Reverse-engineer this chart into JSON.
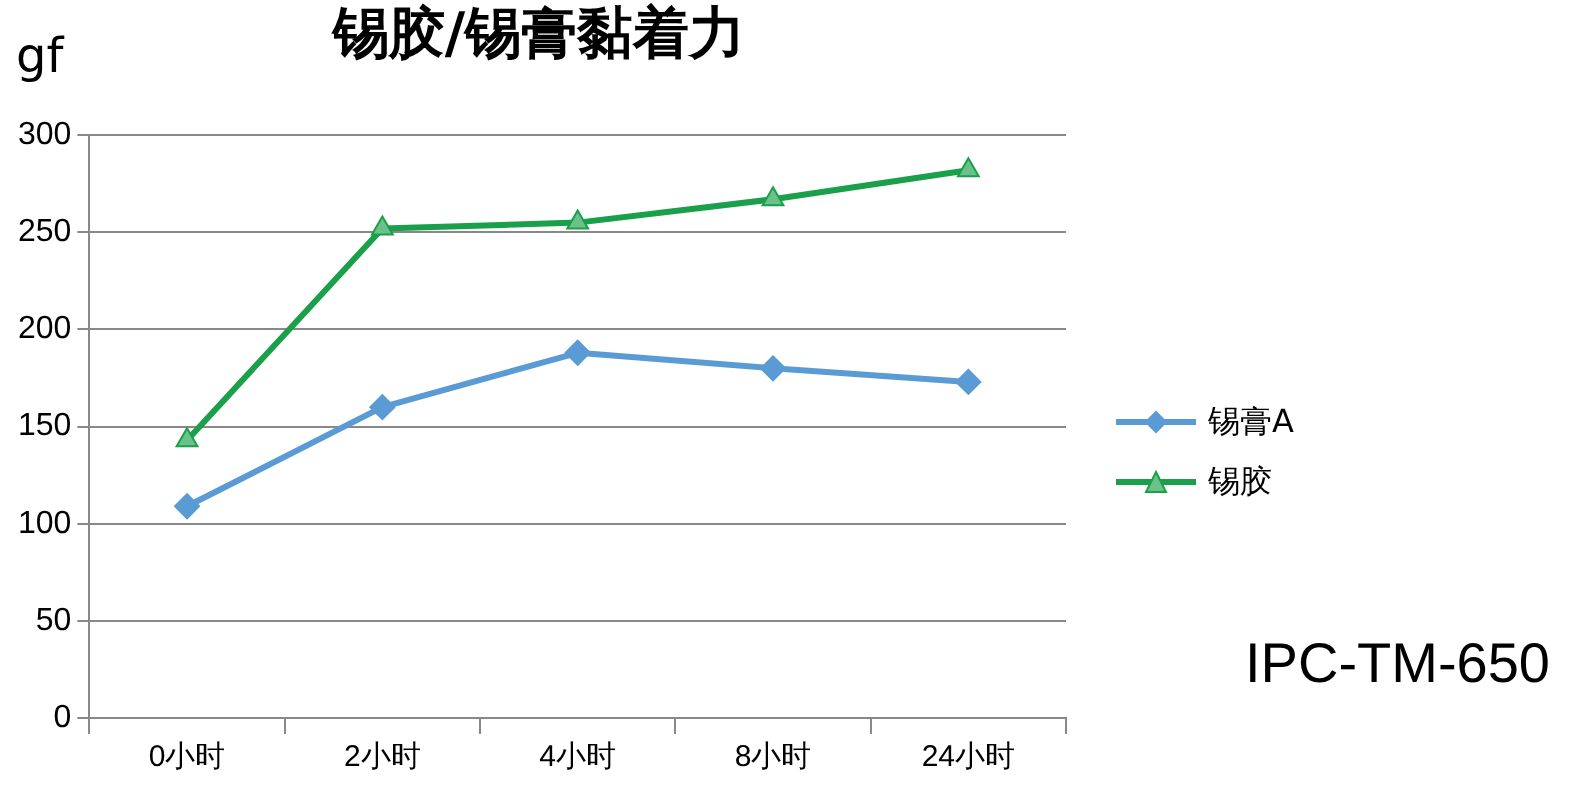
{
  "chart_data": {
    "type": "line",
    "title": "锡胶/锡膏黏着力",
    "ylabel": "gf",
    "categories": [
      "0小时",
      "2小时",
      "4小时",
      "8小时",
      "24小时"
    ],
    "series": [
      {
        "name": "锡膏A",
        "color": "#5b9bd5",
        "marker": "diamond",
        "values": [
          109,
          160,
          188,
          180,
          173
        ]
      },
      {
        "name": "锡胶",
        "color": "#1aa04a",
        "marker": "triangle",
        "values": [
          143,
          252,
          255,
          267,
          282
        ]
      }
    ],
    "ylim": [
      0,
      300
    ],
    "yticks": [
      0,
      50,
      100,
      150,
      200,
      250,
      300
    ],
    "grid": "y",
    "legend": "right",
    "line_style": "solid",
    "annotations": [
      "IPC-TM-650"
    ]
  }
}
